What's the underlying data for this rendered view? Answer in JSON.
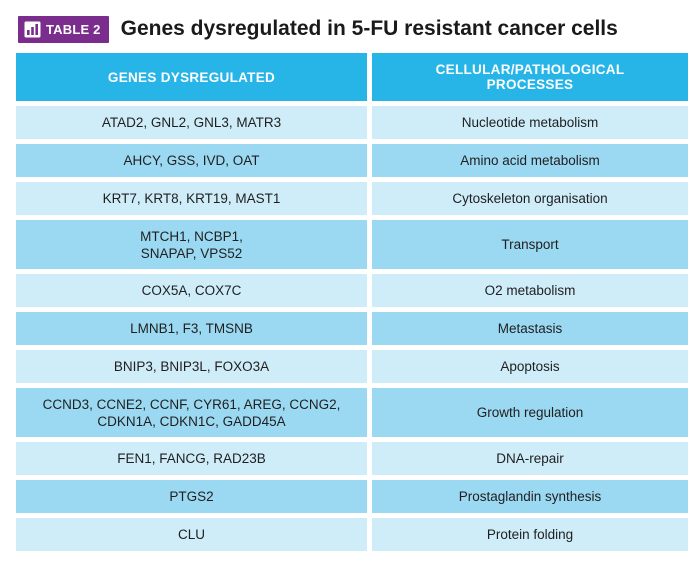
{
  "badge": {
    "icon": "table-chart-icon",
    "label": "TABLE 2",
    "color": "#7b2d8e"
  },
  "title": "Genes dysregulated in 5-FU resistant cancer cells",
  "table": {
    "header_color": "#27b5e8",
    "headers": [
      "GENES DYSREGULATED",
      "CELLULAR/PATHOLOGICAL PROCESSES"
    ],
    "rows": [
      {
        "genes": "ATAD2, GNL2, GNL3, MATR3",
        "process": "Nucleotide metabolism"
      },
      {
        "genes": "AHCY, GSS, IVD, OAT",
        "process": "Amino acid metabolism"
      },
      {
        "genes": "KRT7, KRT8, KRT19, MAST1",
        "process": "Cytoskeleton organisation"
      },
      {
        "genes": "MTCH1, NCBP1, SNAPAP, VPS52",
        "process": "Transport"
      },
      {
        "genes": "COX5A, COX7C",
        "process": "O2 metabolism"
      },
      {
        "genes": "LMNB1, F3, TMSNB",
        "process": "Metastasis"
      },
      {
        "genes": "BNIP3, BNIP3L, FOXO3A",
        "process": "Apoptosis"
      },
      {
        "genes": "CCND3, CCNE2, CCNF, CYR61, AREG, CCNG2, CDKN1A, CDKN1C, GADD45A",
        "process": "Growth regulation"
      },
      {
        "genes": "FEN1, FANCG, RAD23B",
        "process": "DNA-repair"
      },
      {
        "genes": "PTGS2",
        "process": "Prostaglandin synthesis"
      },
      {
        "genes": "CLU",
        "process": "Protein folding"
      }
    ]
  }
}
